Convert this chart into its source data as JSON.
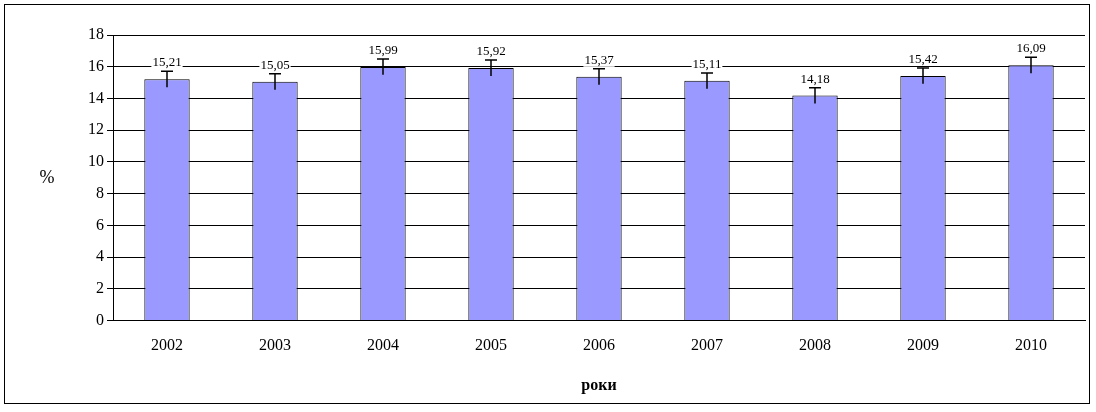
{
  "chart_data": {
    "type": "bar",
    "xlabel": "роки",
    "ylabel": "%",
    "categories": [
      "2002",
      "2003",
      "2004",
      "2005",
      "2006",
      "2007",
      "2008",
      "2009",
      "2010"
    ],
    "values": [
      15.21,
      15.05,
      15.99,
      15.92,
      15.37,
      15.11,
      14.18,
      15.42,
      16.09
    ],
    "value_labels": [
      "15,21",
      "15,05",
      "15,99",
      "15,92",
      "15,37",
      "15,11",
      "14,18",
      "15,42",
      "16,09"
    ],
    "errors": [
      0.5,
      0.5,
      0.5,
      0.5,
      0.5,
      0.5,
      0.5,
      0.5,
      0.5
    ],
    "color": "#9999ff",
    "ylim": [
      0,
      18
    ],
    "yticks": [
      0,
      2,
      4,
      6,
      8,
      10,
      12,
      14,
      16,
      18
    ],
    "grid": "y",
    "legend": false
  }
}
